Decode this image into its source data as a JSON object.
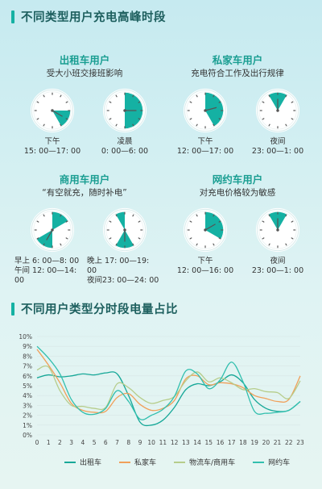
{
  "section1": {
    "title": "不同类型用户充电高峰时段"
  },
  "section2": {
    "title": "不同用户类型分时段电量占比"
  },
  "users": [
    {
      "title": "出租车用户",
      "desc": "受大小班交接班影响",
      "clocks": [
        {
          "label1": "下午",
          "label2": "15: 00—17: 00",
          "sectors": [
            [
              15,
              17
            ]
          ],
          "hand": 16
        },
        {
          "label1": "凌晨",
          "label2": "0: 00—6: 00",
          "sectors": [
            [
              0,
              6
            ]
          ],
          "hand": 3
        }
      ]
    },
    {
      "title": "私家车用户",
      "desc": "充电符合工作及出行规律",
      "clocks": [
        {
          "label1": "下午",
          "label2": "12: 00—17: 00",
          "sectors": [
            [
              12,
              17
            ]
          ],
          "hand": 14.5
        },
        {
          "label1": "夜间",
          "label2": "23: 00—1: 00",
          "sectors": [
            [
              23,
              25
            ]
          ],
          "hand": 0
        }
      ]
    },
    {
      "title": "商用车用户",
      "desc": "“有空就充，随时补电”",
      "clocks": [
        {
          "label1": "早上 6: 00—8: 00",
          "label2": "午间 12: 00—14: 00",
          "sectors": [
            [
              6,
              8
            ],
            [
              12,
              14
            ]
          ],
          "hand": 7
        },
        {
          "label1": "晚上 17: 00—19: 00",
          "label2": "夜间23: 00—24: 00",
          "sectors": [
            [
              17,
              19
            ],
            [
              23,
              24
            ]
          ],
          "hand": 18
        }
      ]
    },
    {
      "title": "网约车用户",
      "desc": "对充电价格较为敏感",
      "clocks": [
        {
          "label1": "下午",
          "label2": "12: 00—16: 00",
          "sectors": [
            [
              12,
              16
            ]
          ],
          "hand": 14
        },
        {
          "label1": "夜间",
          "label2": "23: 00—1: 00",
          "sectors": [
            [
              23,
              25
            ]
          ],
          "hand": 0
        }
      ]
    }
  ],
  "colors": {
    "teal": "#15b1a3",
    "dark": "#1d5f5e",
    "grid": "#d8e6e6"
  },
  "chart_data": {
    "type": "line",
    "x": [
      0,
      1,
      2,
      3,
      4,
      5,
      6,
      7,
      8,
      9,
      10,
      11,
      12,
      13,
      14,
      15,
      16,
      17,
      18,
      19,
      20,
      21,
      22,
      23
    ],
    "ylim": [
      0,
      10
    ],
    "yticks": [
      "0%",
      "1%",
      "2%",
      "3%",
      "4%",
      "5%",
      "6%",
      "7%",
      "8%",
      "9%",
      "10%"
    ],
    "xticks": [
      "0",
      "1",
      "2",
      "3",
      "4",
      "5",
      "6",
      "7",
      "8",
      "9",
      "10",
      "11",
      "12",
      "13",
      "14",
      "15",
      "16",
      "17",
      "18",
      "19",
      "20",
      "21",
      "22",
      "23"
    ],
    "series": [
      {
        "name": "出租车",
        "color": "#17a898",
        "values": [
          5.8,
          6.1,
          5.9,
          6.0,
          6.2,
          6.1,
          6.3,
          6.2,
          4.0,
          1.3,
          1.0,
          1.5,
          2.8,
          4.6,
          5.2,
          5.0,
          5.4,
          6.1,
          5.3,
          3.6,
          2.7,
          2.4,
          2.5,
          3.4
        ]
      },
      {
        "name": "私家车",
        "color": "#f0a05a",
        "values": [
          8.7,
          7.1,
          5.3,
          3.2,
          2.5,
          2.3,
          2.4,
          3.8,
          4.2,
          3.1,
          2.5,
          2.7,
          3.5,
          5.7,
          6.0,
          5.1,
          5.3,
          5.2,
          4.8,
          4.0,
          3.7,
          3.4,
          3.6,
          6.0
        ]
      },
      {
        "name": "物流车/商用车",
        "color": "#b6cd8b",
        "values": [
          6.6,
          6.9,
          4.5,
          3.0,
          2.9,
          2.7,
          2.8,
          5.2,
          4.8,
          3.8,
          3.2,
          3.5,
          3.9,
          5.5,
          6.4,
          5.4,
          5.8,
          5.3,
          4.6,
          4.7,
          4.4,
          4.3,
          3.7,
          5.5
        ]
      },
      {
        "name": "网约车",
        "color": "#32bfae",
        "values": [
          9.0,
          7.8,
          6.2,
          3.6,
          2.3,
          2.1,
          2.7,
          4.5,
          3.4,
          1.6,
          2.0,
          2.6,
          3.9,
          6.5,
          6.2,
          4.7,
          5.6,
          7.4,
          5.4,
          2.4,
          2.2,
          2.3,
          2.5,
          3.4
        ]
      }
    ]
  }
}
